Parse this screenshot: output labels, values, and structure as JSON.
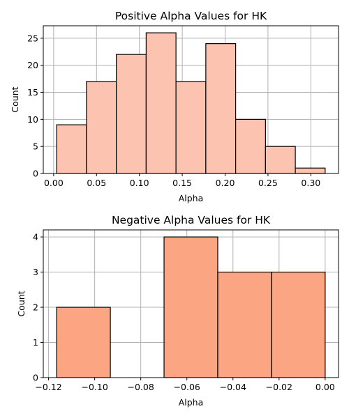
{
  "chart_data": [
    {
      "type": "bar",
      "title": "Positive Alpha Values for HK",
      "xlabel": "Alpha",
      "ylabel": "Count",
      "bin_edges": [
        0.0035,
        0.0383,
        0.0731,
        0.1079,
        0.1427,
        0.1775,
        0.2123,
        0.2471,
        0.2819,
        0.3167
      ],
      "values": [
        9,
        17,
        22,
        26,
        17,
        24,
        10,
        5,
        1
      ],
      "xlim": [
        -0.0121,
        0.3323
      ],
      "ylim": [
        0,
        27.3
      ],
      "xticks": [
        "0.00",
        "0.05",
        "0.10",
        "0.15",
        "0.20",
        "0.25",
        "0.30"
      ],
      "xtick_values": [
        0.0,
        0.05,
        0.1,
        0.15,
        0.2,
        0.25,
        0.3
      ],
      "yticks": [
        "0",
        "5",
        "10",
        "15",
        "20",
        "25"
      ],
      "ytick_values": [
        0,
        5,
        10,
        15,
        20,
        25
      ],
      "color": "#fcc4b0",
      "grid": true
    },
    {
      "type": "bar",
      "title": "Negative Alpha Values for HK",
      "xlabel": "Alpha",
      "ylabel": "Count",
      "bin_edges": [
        -0.1165,
        -0.0932,
        -0.0699,
        -0.0466,
        -0.0233,
        0.0
      ],
      "values": [
        2,
        0,
        4,
        3,
        3
      ],
      "xlim": [
        -0.1223,
        0.0058
      ],
      "ylim": [
        0,
        4.2
      ],
      "xticks": [
        "−0.12",
        "−0.10",
        "−0.08",
        "−0.06",
        "−0.04",
        "−0.02",
        "0.00"
      ],
      "xtick_values": [
        -0.12,
        -0.1,
        -0.08,
        -0.06,
        -0.04,
        -0.02,
        0.0
      ],
      "yticks": [
        "0",
        "1",
        "2",
        "3",
        "4"
      ],
      "ytick_values": [
        0,
        1,
        2,
        3,
        4
      ],
      "color": "#fca583",
      "grid": true
    }
  ]
}
